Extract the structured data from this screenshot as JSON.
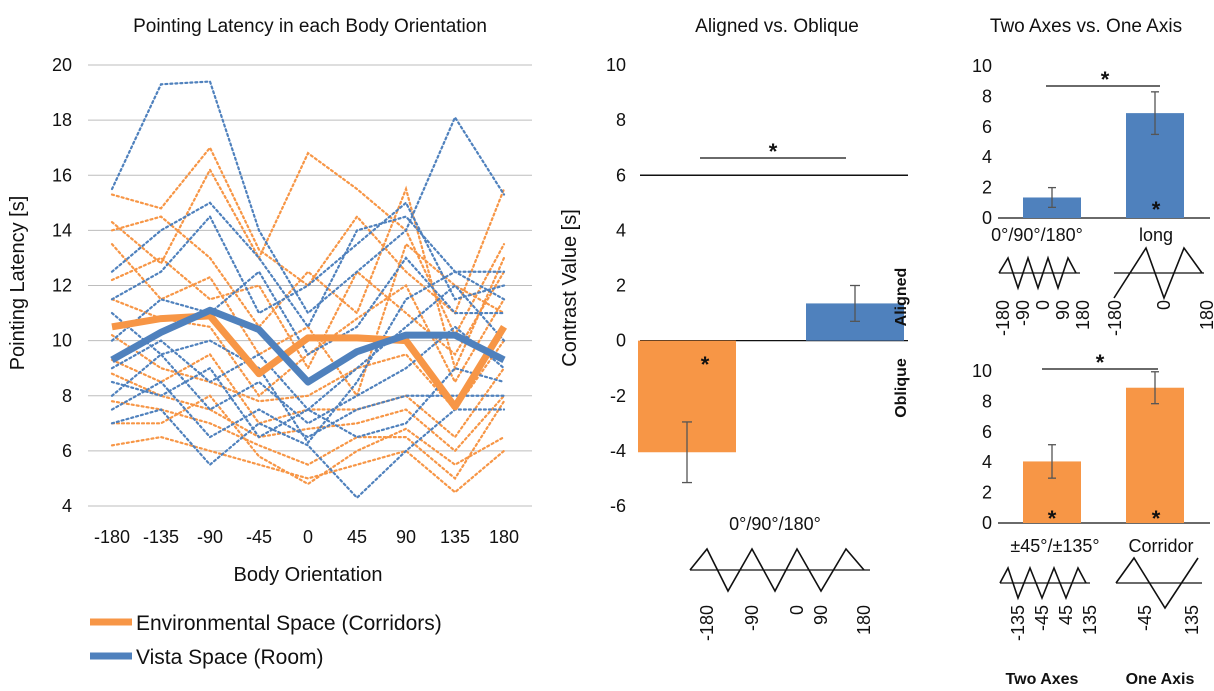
{
  "chart_data": [
    {
      "type": "line",
      "title": "Pointing Latency in each Body Orientation",
      "xlabel": "Body Orientation",
      "ylabel": "Pointing Latency [s]",
      "categories": [
        "-180",
        "-135",
        "-90",
        "-45",
        "0",
        "45",
        "90",
        "135",
        "180"
      ],
      "ylim": [
        4,
        20
      ],
      "yticks": [
        "4",
        "6",
        "8",
        "10",
        "12",
        "14",
        "16",
        "18",
        "20"
      ],
      "grid": true,
      "legend_position": "bottom-left",
      "series": [
        {
          "name": "Environmental Space (Corridors)",
          "color": "#F79646",
          "values": [
            10.5,
            10.8,
            10.9,
            8.8,
            10.1,
            10.1,
            10.0,
            7.6,
            10.5
          ]
        },
        {
          "name": "Vista Space (Room)",
          "color": "#4F81BD",
          "values": [
            9.3,
            10.3,
            11.1,
            10.4,
            8.5,
            9.6,
            10.2,
            10.2,
            9.3
          ]
        }
      ],
      "individual_traces": [
        {
          "group": "Environmental Space (Corridors)",
          "color": "#F79646",
          "lines": [
            [
              15.3,
              14.8,
              17.0,
              13.3,
              12.0,
              14.5,
              12.5,
              11.0,
              15.5
            ],
            [
              14.3,
              12.8,
              16.2,
              13.0,
              16.8,
              15.5,
              14.0,
              10.2,
              13.5
            ],
            [
              14.0,
              14.5,
              13.0,
              10.5,
              12.5,
              11.0,
              15.5,
              9.0,
              13.0
            ],
            [
              13.5,
              11.5,
              12.3,
              9.5,
              10.5,
              8.0,
              13.5,
              12.0,
              11.0
            ],
            [
              12.2,
              13.0,
              11.5,
              12.0,
              9.0,
              12.5,
              11.0,
              9.5,
              12.5
            ],
            [
              11.5,
              10.8,
              10.5,
              8.0,
              9.5,
              10.8,
              12.0,
              8.5,
              11.5
            ],
            [
              10.2,
              9.0,
              8.5,
              7.8,
              8.0,
              9.0,
              9.5,
              7.5,
              10.0
            ],
            [
              9.3,
              8.5,
              9.5,
              7.0,
              7.5,
              7.5,
              8.0,
              6.5,
              9.0
            ],
            [
              8.8,
              8.0,
              7.5,
              6.5,
              6.8,
              7.0,
              7.5,
              6.0,
              8.0
            ],
            [
              7.8,
              7.5,
              7.0,
              6.2,
              5.5,
              6.5,
              6.5,
              5.0,
              7.8
            ],
            [
              6.2,
              6.5,
              6.0,
              5.5,
              5.0,
              5.5,
              6.0,
              4.5,
              6.0
            ],
            [
              7.0,
              7.0,
              8.0,
              5.8,
              4.8,
              6.0,
              6.8,
              5.5,
              6.5
            ]
          ]
        },
        {
          "group": "Vista Space (Room)",
          "color": "#4F81BD",
          "lines": [
            [
              15.5,
              19.3,
              19.4,
              14.0,
              11.0,
              12.5,
              14.0,
              18.1,
              15.3
            ],
            [
              12.5,
              14.0,
              15.0,
              13.0,
              10.5,
              14.0,
              14.5,
              12.5,
              12.5
            ],
            [
              11.5,
              12.5,
              14.5,
              11.0,
              12.0,
              13.5,
              15.0,
              11.5,
              12.0
            ],
            [
              10.0,
              11.5,
              11.0,
              12.5,
              9.5,
              10.5,
              13.0,
              11.0,
              11.0
            ],
            [
              9.0,
              10.0,
              8.5,
              9.5,
              7.5,
              9.0,
              10.5,
              12.0,
              10.0
            ],
            [
              8.0,
              9.5,
              7.5,
              8.5,
              7.0,
              8.0,
              9.0,
              10.5,
              9.0
            ],
            [
              7.5,
              8.5,
              6.5,
              7.5,
              6.5,
              7.5,
              8.0,
              8.0,
              8.0
            ],
            [
              7.0,
              7.5,
              5.5,
              7.0,
              6.2,
              4.3,
              6.0,
              7.5,
              7.5
            ],
            [
              8.5,
              8.0,
              9.0,
              6.5,
              7.5,
              6.5,
              7.0,
              9.0,
              8.5
            ],
            [
              11.0,
              9.5,
              10.0,
              9.0,
              6.3,
              8.5,
              11.5,
              12.5,
              11.5
            ]
          ]
        }
      ]
    },
    {
      "type": "bar",
      "title": "Aligned vs. Oblique",
      "ylabel": "Contrast Value [s]",
      "ylim": [
        -6,
        10
      ],
      "yticks": [
        "-6",
        "-4",
        "-2",
        "0",
        "2",
        "4",
        "6",
        "8",
        "10"
      ],
      "categories": [
        "Oblique",
        "Aligned"
      ],
      "values": [
        -4.05,
        1.35
      ],
      "errors": [
        1.1,
        0.65
      ],
      "colors": [
        "#F79646",
        "#4F81BD"
      ],
      "reference_line": 6,
      "side_labels": [
        "Aligned",
        "Oblique"
      ],
      "category_label": "0°/90°/180°",
      "pattern_ticks": [
        "-180",
        "-90",
        "0",
        "90",
        "180"
      ],
      "stars": [
        {
          "label": "*",
          "meaning": "bar difference"
        },
        {
          "label": "*",
          "meaning": "Oblique bar"
        }
      ]
    },
    {
      "type": "bar",
      "title": "Two Axes vs. One Axis",
      "ylim": [
        0,
        10
      ],
      "yticks": [
        "0",
        "2",
        "4",
        "6",
        "8",
        "10"
      ],
      "categories": [
        "0°/90°/180°",
        "long"
      ],
      "values": [
        1.35,
        6.9
      ],
      "errors": [
        0.65,
        1.4
      ],
      "color": "#4F81BD",
      "pattern_ticks": [
        [
          "-180",
          "-90",
          "0",
          "90",
          "180"
        ],
        [
          "-180",
          "0",
          "180"
        ]
      ],
      "stars": [
        "*",
        "*"
      ]
    },
    {
      "type": "bar",
      "ylim": [
        0,
        10
      ],
      "yticks": [
        "0",
        "2",
        "4",
        "6",
        "8",
        "10"
      ],
      "categories": [
        "±45°/±135°",
        "Corridor"
      ],
      "values": [
        4.05,
        8.9
      ],
      "errors": [
        1.1,
        1.05
      ],
      "color": "#F79646",
      "pattern_ticks": [
        [
          "-135",
          "-45",
          "45",
          "135"
        ],
        [
          "-45",
          "135"
        ]
      ],
      "group_labels": [
        "Two Axes",
        "One Axis"
      ],
      "stars": [
        "*",
        "*",
        "*"
      ]
    }
  ]
}
